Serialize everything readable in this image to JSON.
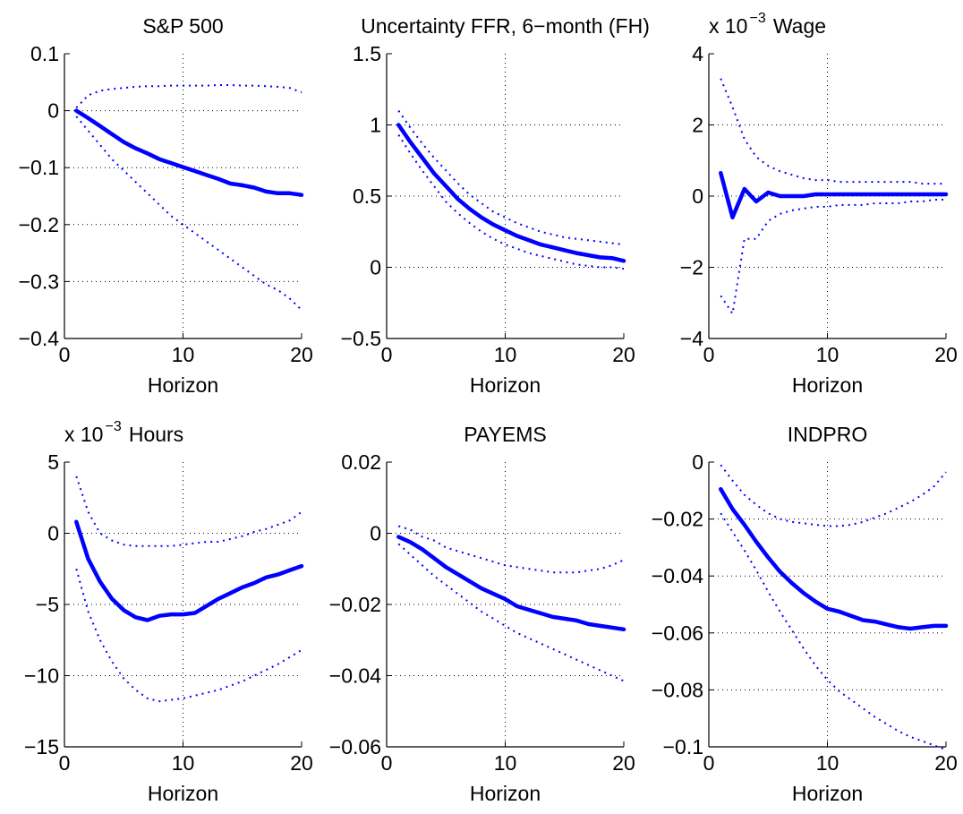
{
  "chart_data": [
    {
      "type": "line",
      "title": "S&P 500",
      "exponent_label": "",
      "xlabel": "Horizon",
      "xlim": [
        0,
        20
      ],
      "ylim": [
        -0.4,
        0.1
      ],
      "xticks": [
        0,
        10,
        20
      ],
      "xtick_labels": [
        "0",
        "10",
        "20"
      ],
      "yticks": [
        0.1,
        0,
        -0.1,
        -0.2,
        -0.3,
        -0.4
      ],
      "ytick_labels": [
        "0.1",
        "0",
        "−0.1",
        "−0.2",
        "−0.3",
        "−0.4"
      ],
      "grid": true,
      "x": [
        1,
        2,
        3,
        4,
        5,
        6,
        7,
        8,
        9,
        10,
        11,
        12,
        13,
        14,
        15,
        16,
        17,
        18,
        19,
        20
      ],
      "series": [
        {
          "role": "point estimate",
          "style": "solid",
          "values": [
            0.0,
            -0.013,
            -0.027,
            -0.041,
            -0.055,
            -0.066,
            -0.075,
            -0.085,
            -0.092,
            -0.099,
            -0.106,
            -0.113,
            -0.12,
            -0.128,
            -0.131,
            -0.135,
            -0.142,
            -0.145,
            -0.145,
            -0.148
          ]
        },
        {
          "role": "upper band",
          "style": "dotted",
          "values": [
            0.005,
            0.027,
            0.035,
            0.038,
            0.04,
            0.042,
            0.043,
            0.043,
            0.044,
            0.044,
            0.044,
            0.044,
            0.045,
            0.045,
            0.044,
            0.044,
            0.043,
            0.042,
            0.04,
            0.032
          ]
        },
        {
          "role": "lower band",
          "style": "dotted",
          "values": [
            -0.01,
            -0.035,
            -0.06,
            -0.085,
            -0.105,
            -0.125,
            -0.145,
            -0.165,
            -0.185,
            -0.2,
            -0.215,
            -0.23,
            -0.245,
            -0.26,
            -0.275,
            -0.29,
            -0.305,
            -0.315,
            -0.33,
            -0.35
          ]
        }
      ]
    },
    {
      "type": "line",
      "title": "Uncertainty FFR, 6−month (FH)",
      "exponent_label": "",
      "xlabel": "Horizon",
      "xlim": [
        0,
        20
      ],
      "ylim": [
        -0.5,
        1.5
      ],
      "xticks": [
        0,
        10,
        20
      ],
      "xtick_labels": [
        "0",
        "10",
        "20"
      ],
      "yticks": [
        1.5,
        1,
        0.5,
        0,
        -0.5
      ],
      "ytick_labels": [
        "1.5",
        "1",
        "0.5",
        "0",
        "−0.5"
      ],
      "grid": true,
      "x": [
        1,
        2,
        3,
        4,
        5,
        6,
        7,
        8,
        9,
        10,
        11,
        12,
        13,
        14,
        15,
        16,
        17,
        18,
        19,
        20
      ],
      "series": [
        {
          "role": "point estimate",
          "style": "solid",
          "values": [
            1.0,
            0.88,
            0.77,
            0.66,
            0.57,
            0.48,
            0.41,
            0.35,
            0.3,
            0.26,
            0.22,
            0.19,
            0.16,
            0.14,
            0.12,
            0.1,
            0.085,
            0.07,
            0.065,
            0.045
          ]
        },
        {
          "role": "upper band",
          "style": "dotted",
          "values": [
            1.1,
            0.98,
            0.87,
            0.77,
            0.68,
            0.59,
            0.51,
            0.45,
            0.39,
            0.35,
            0.31,
            0.28,
            0.25,
            0.23,
            0.21,
            0.2,
            0.19,
            0.18,
            0.17,
            0.16
          ]
        },
        {
          "role": "lower band",
          "style": "dotted",
          "values": [
            0.93,
            0.8,
            0.68,
            0.57,
            0.46,
            0.38,
            0.31,
            0.25,
            0.2,
            0.16,
            0.13,
            0.1,
            0.08,
            0.06,
            0.04,
            0.02,
            0.01,
            0.0,
            0.0,
            -0.01
          ]
        }
      ]
    },
    {
      "type": "line",
      "title": "Wage",
      "exponent_label": "x 10",
      "exponent": "−3",
      "xlabel": "Horizon",
      "xlim": [
        0,
        20
      ],
      "ylim": [
        -4,
        4
      ],
      "xticks": [
        0,
        10,
        20
      ],
      "xtick_labels": [
        "0",
        "10",
        "20"
      ],
      "yticks": [
        4,
        2,
        0,
        -2,
        -4
      ],
      "ytick_labels": [
        "4",
        "2",
        "0",
        "−2",
        "−4"
      ],
      "grid": true,
      "x": [
        1,
        2,
        3,
        4,
        5,
        6,
        7,
        8,
        9,
        10,
        11,
        12,
        13,
        14,
        15,
        16,
        17,
        18,
        19,
        20
      ],
      "series": [
        {
          "role": "point estimate",
          "style": "solid",
          "values": [
            0.65,
            -0.6,
            0.2,
            -0.15,
            0.1,
            0.0,
            0.0,
            0.0,
            0.05,
            0.05,
            0.05,
            0.05,
            0.05,
            0.05,
            0.05,
            0.05,
            0.05,
            0.05,
            0.05,
            0.05
          ]
        },
        {
          "role": "upper band",
          "style": "dotted",
          "values": [
            3.3,
            2.5,
            1.6,
            1.1,
            0.85,
            0.7,
            0.6,
            0.5,
            0.45,
            0.45,
            0.4,
            0.4,
            0.4,
            0.4,
            0.4,
            0.4,
            0.4,
            0.35,
            0.35,
            0.35
          ]
        },
        {
          "role": "lower band",
          "style": "dotted",
          "values": [
            -2.8,
            -3.3,
            -1.2,
            -1.2,
            -0.7,
            -0.5,
            -0.4,
            -0.35,
            -0.3,
            -0.3,
            -0.25,
            -0.25,
            -0.25,
            -0.2,
            -0.2,
            -0.2,
            -0.15,
            -0.15,
            -0.1,
            -0.1
          ]
        }
      ]
    },
    {
      "type": "line",
      "title": "Hours",
      "exponent_label": "x 10",
      "exponent": "−3",
      "xlabel": "Horizon",
      "xlim": [
        0,
        20
      ],
      "ylim": [
        -15,
        5
      ],
      "xticks": [
        0,
        10,
        20
      ],
      "xtick_labels": [
        "0",
        "10",
        "20"
      ],
      "yticks": [
        5,
        0,
        -5,
        -10,
        -15
      ],
      "ytick_labels": [
        "5",
        "0",
        "−5",
        "−10",
        "−15"
      ],
      "grid": true,
      "x": [
        1,
        2,
        3,
        4,
        5,
        6,
        7,
        8,
        9,
        10,
        11,
        12,
        13,
        14,
        15,
        16,
        17,
        18,
        19,
        20
      ],
      "series": [
        {
          "role": "point estimate",
          "style": "solid",
          "values": [
            0.8,
            -1.8,
            -3.4,
            -4.6,
            -5.4,
            -5.9,
            -6.1,
            -5.8,
            -5.7,
            -5.7,
            -5.6,
            -5.1,
            -4.6,
            -4.2,
            -3.8,
            -3.5,
            -3.1,
            -2.9,
            -2.6,
            -2.3
          ]
        },
        {
          "role": "upper band",
          "style": "dotted",
          "values": [
            4.0,
            1.5,
            0.0,
            -0.5,
            -0.8,
            -0.9,
            -0.9,
            -0.9,
            -0.9,
            -0.8,
            -0.7,
            -0.6,
            -0.6,
            -0.4,
            -0.2,
            0.1,
            0.3,
            0.6,
            0.9,
            1.5
          ]
        },
        {
          "role": "lower band",
          "style": "dotted",
          "values": [
            -2.5,
            -5.5,
            -7.5,
            -9.0,
            -10.2,
            -11.0,
            -11.6,
            -11.8,
            -11.7,
            -11.6,
            -11.4,
            -11.2,
            -11.0,
            -10.7,
            -10.4,
            -10.0,
            -9.6,
            -9.2,
            -8.7,
            -8.2
          ]
        }
      ]
    },
    {
      "type": "line",
      "title": "PAYEMS",
      "exponent_label": "",
      "xlabel": "Horizon",
      "xlim": [
        0,
        20
      ],
      "ylim": [
        -0.06,
        0.02
      ],
      "xticks": [
        0,
        10,
        20
      ],
      "xtick_labels": [
        "0",
        "10",
        "20"
      ],
      "yticks": [
        0.02,
        0,
        -0.02,
        -0.04,
        -0.06
      ],
      "ytick_labels": [
        "0.02",
        "0",
        "−0.02",
        "−0.04",
        "−0.06"
      ],
      "grid": true,
      "x": [
        1,
        2,
        3,
        4,
        5,
        6,
        7,
        8,
        9,
        10,
        11,
        12,
        13,
        14,
        15,
        16,
        17,
        18,
        19,
        20
      ],
      "series": [
        {
          "role": "point estimate",
          "style": "solid",
          "values": [
            -0.001,
            -0.0025,
            -0.0045,
            -0.007,
            -0.0095,
            -0.0115,
            -0.0135,
            -0.0155,
            -0.017,
            -0.0185,
            -0.0205,
            -0.0215,
            -0.0225,
            -0.0235,
            -0.024,
            -0.0245,
            -0.0255,
            -0.026,
            -0.0265,
            -0.027
          ]
        },
        {
          "role": "upper band",
          "style": "dotted",
          "values": [
            0.002,
            0.001,
            -0.001,
            -0.002,
            -0.004,
            -0.005,
            -0.006,
            -0.007,
            -0.008,
            -0.009,
            -0.0095,
            -0.01,
            -0.0105,
            -0.011,
            -0.011,
            -0.011,
            -0.0105,
            -0.01,
            -0.009,
            -0.0075
          ]
        },
        {
          "role": "lower band",
          "style": "dotted",
          "values": [
            -0.003,
            -0.006,
            -0.009,
            -0.012,
            -0.0145,
            -0.017,
            -0.0195,
            -0.022,
            -0.024,
            -0.026,
            -0.028,
            -0.0295,
            -0.031,
            -0.0325,
            -0.034,
            -0.0355,
            -0.037,
            -0.0385,
            -0.04,
            -0.0415
          ]
        }
      ]
    },
    {
      "type": "line",
      "title": "INDPRO",
      "exponent_label": "",
      "xlabel": "Horizon",
      "xlim": [
        0,
        20
      ],
      "ylim": [
        -0.1,
        0
      ],
      "xticks": [
        0,
        10,
        20
      ],
      "xtick_labels": [
        "0",
        "10",
        "20"
      ],
      "yticks": [
        0,
        -0.02,
        -0.04,
        -0.06,
        -0.08,
        -0.1
      ],
      "ytick_labels": [
        "0",
        "−0.02",
        "−0.04",
        "−0.06",
        "−0.08",
        "−0.1"
      ],
      "grid": true,
      "x": [
        1,
        2,
        3,
        4,
        5,
        6,
        7,
        8,
        9,
        10,
        11,
        12,
        13,
        14,
        15,
        16,
        17,
        18,
        19,
        20
      ],
      "series": [
        {
          "role": "point estimate",
          "style": "solid",
          "values": [
            -0.0095,
            -0.0165,
            -0.022,
            -0.028,
            -0.0335,
            -0.0385,
            -0.0425,
            -0.046,
            -0.049,
            -0.0515,
            -0.0525,
            -0.054,
            -0.0555,
            -0.056,
            -0.057,
            -0.058,
            -0.0585,
            -0.058,
            -0.0575,
            -0.0575
          ]
        },
        {
          "role": "upper band",
          "style": "dotted",
          "values": [
            -0.001,
            -0.0065,
            -0.0115,
            -0.015,
            -0.018,
            -0.02,
            -0.021,
            -0.0215,
            -0.022,
            -0.0225,
            -0.0225,
            -0.022,
            -0.021,
            -0.0195,
            -0.018,
            -0.016,
            -0.014,
            -0.0115,
            -0.0085,
            -0.0035
          ]
        },
        {
          "role": "lower band",
          "style": "dotted",
          "values": [
            -0.018,
            -0.0245,
            -0.031,
            -0.038,
            -0.0455,
            -0.0525,
            -0.059,
            -0.0655,
            -0.0715,
            -0.0765,
            -0.0805,
            -0.0835,
            -0.0865,
            -0.0895,
            -0.092,
            -0.0945,
            -0.0965,
            -0.098,
            -0.0995,
            -0.101
          ]
        }
      ]
    }
  ],
  "colors": {
    "line": "#0000ff",
    "axes": "#000000",
    "grid": "#000000"
  }
}
